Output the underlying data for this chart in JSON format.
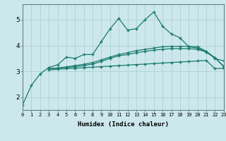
{
  "xlabel": "Humidex (Indice chaleur)",
  "bg_color": "#cce8ec",
  "grid_color": "#b0d8dc",
  "line_color": "#1a7a6e",
  "x_ticks": [
    0,
    1,
    2,
    3,
    4,
    5,
    6,
    7,
    8,
    9,
    10,
    11,
    12,
    13,
    14,
    15,
    16,
    17,
    18,
    19,
    20,
    21,
    22,
    23
  ],
  "y_ticks": [
    2,
    3,
    4,
    5
  ],
  "ylim": [
    1.5,
    5.6
  ],
  "xlim": [
    0,
    23
  ],
  "line1_x": [
    0,
    1,
    2,
    3,
    4,
    5,
    6,
    7,
    8,
    9,
    10,
    11,
    12,
    13,
    14,
    15,
    16,
    17,
    18,
    19,
    20,
    21,
    22,
    23
  ],
  "line1_y": [
    1.7,
    2.45,
    2.9,
    3.15,
    3.25,
    3.55,
    3.5,
    3.65,
    3.65,
    4.15,
    4.65,
    5.05,
    4.6,
    4.65,
    5.0,
    5.3,
    4.75,
    4.45,
    4.3,
    3.95,
    3.9,
    3.75,
    3.5,
    3.4
  ],
  "line2_x": [
    3,
    4,
    5,
    6,
    7,
    8,
    9,
    10,
    11,
    12,
    13,
    14,
    15,
    16,
    17,
    18,
    19,
    20,
    21,
    22,
    23
  ],
  "line2_y": [
    3.05,
    3.08,
    3.1,
    3.12,
    3.14,
    3.16,
    3.18,
    3.2,
    3.22,
    3.24,
    3.26,
    3.28,
    3.3,
    3.32,
    3.34,
    3.36,
    3.38,
    3.4,
    3.42,
    3.1,
    3.12
  ],
  "line3_x": [
    3,
    4,
    5,
    6,
    7,
    8,
    9,
    10,
    11,
    12,
    13,
    14,
    15,
    16,
    17,
    18,
    19,
    20,
    21,
    22,
    23
  ],
  "line3_y": [
    3.1,
    3.12,
    3.15,
    3.18,
    3.22,
    3.28,
    3.38,
    3.5,
    3.6,
    3.65,
    3.72,
    3.77,
    3.82,
    3.85,
    3.88,
    3.88,
    3.88,
    3.85,
    3.75,
    3.52,
    3.2
  ],
  "line4_x": [
    3,
    4,
    5,
    6,
    7,
    8,
    9,
    10,
    11,
    12,
    13,
    14,
    15,
    16,
    17,
    18,
    19,
    20,
    21,
    22,
    23
  ],
  "line4_y": [
    3.1,
    3.13,
    3.17,
    3.22,
    3.27,
    3.34,
    3.44,
    3.55,
    3.65,
    3.72,
    3.8,
    3.85,
    3.9,
    3.95,
    3.97,
    3.97,
    3.97,
    3.95,
    3.78,
    3.52,
    3.18
  ]
}
